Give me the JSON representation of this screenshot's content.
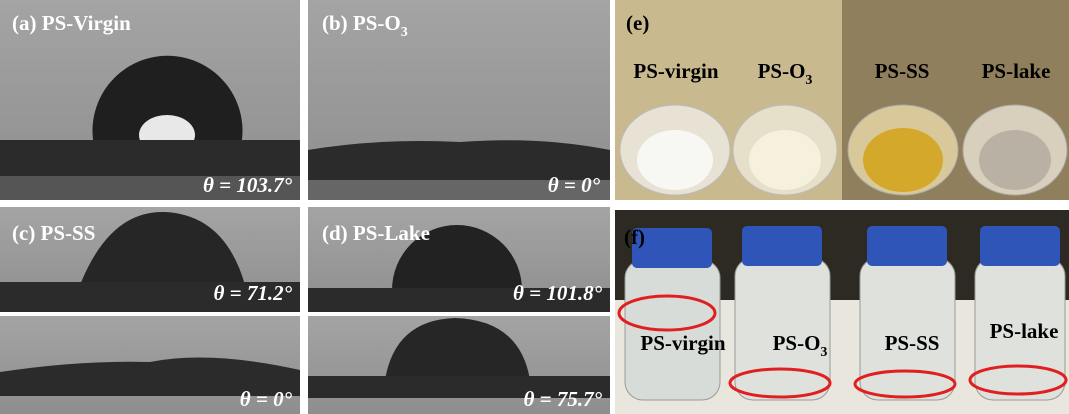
{
  "panels": {
    "a": {
      "label": "(a) PS-Virgin",
      "angle": "θ = 103.7°"
    },
    "b": {
      "label": {
        "text": "(b) PS-O",
        "sub": "3"
      },
      "angle": "θ = 0°"
    },
    "c": {
      "label": "(c) PS-SS",
      "angle_top": "θ = 71.2°",
      "angle_bottom": "θ = 0°"
    },
    "d": {
      "label": "(d) PS-Lake",
      "angle_top": "θ = 101.8°",
      "angle_bottom": "θ = 75.7°"
    },
    "e": {
      "label": "(e)",
      "samples": [
        "PS-virgin",
        {
          "text": "PS-O",
          "sub": "3"
        },
        "PS-SS",
        "PS-lake"
      ]
    },
    "f": {
      "label": "(f)",
      "samples": [
        "PS-virgin",
        {
          "text": "PS-O",
          "sub": "3"
        },
        "PS-SS",
        "PS-lake"
      ]
    }
  }
}
